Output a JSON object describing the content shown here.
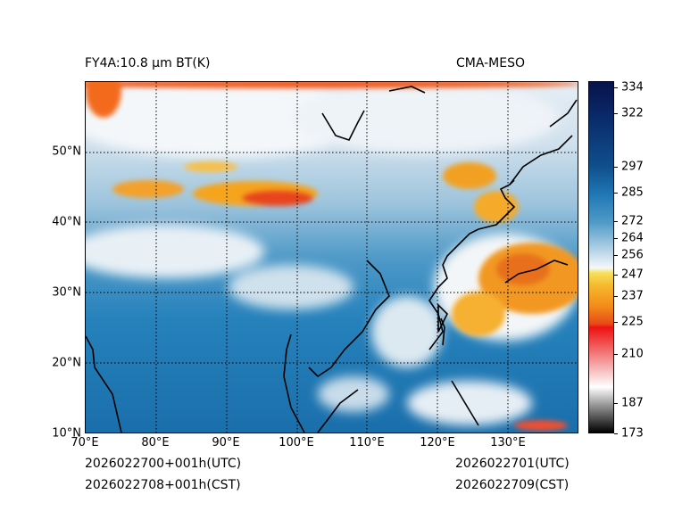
{
  "header": {
    "product_title": "FY4A:10.8 µm BT(K)",
    "source": "CMA-MESO"
  },
  "map": {
    "lon_labels": [
      "70°E",
      "80°E",
      "90°E",
      "100°E",
      "110°E",
      "120°E",
      "130°E"
    ],
    "lat_labels": [
      "10°N",
      "20°N",
      "30°N",
      "40°N",
      "50°N"
    ],
    "lon_values": [
      70,
      80,
      90,
      100,
      110,
      120,
      130
    ],
    "lat_values": [
      10,
      20,
      30,
      40,
      50
    ],
    "lon_range": [
      70,
      140
    ],
    "lat_range": [
      10,
      60
    ]
  },
  "colorbar": {
    "tick_labels": [
      "334",
      "322",
      "297",
      "285",
      "272",
      "264",
      "256",
      "247",
      "237",
      "225",
      "210",
      "187",
      "173"
    ],
    "tick_values": [
      334,
      322,
      297,
      285,
      272,
      264,
      256,
      247,
      237,
      225,
      210,
      187,
      173
    ],
    "range": [
      173,
      337
    ]
  },
  "footer": {
    "init_utc": "2026022700+001h(UTC)",
    "init_cst": "2026022708+001h(CST)",
    "valid_utc": "2026022701(UTC)",
    "valid_cst": "2026022709(CST)"
  },
  "colors": {
    "ocean_deep": "#1f77b4",
    "cloud_white": "#f2f6fa",
    "cold_orange": "#f28c18",
    "very_cold_red": "#e81818",
    "coast": "#000000"
  }
}
